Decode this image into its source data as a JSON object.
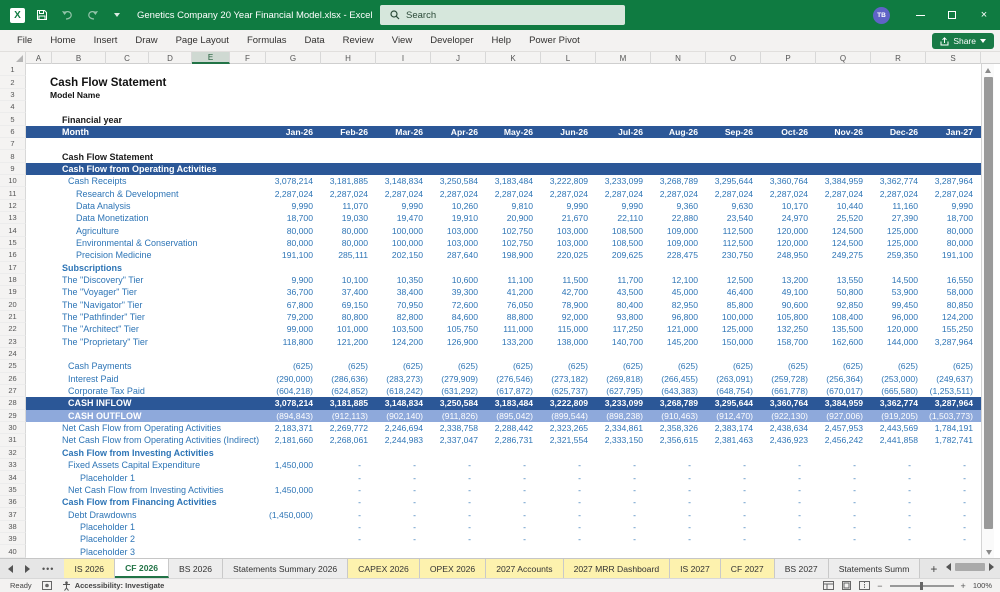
{
  "title_bar": {
    "title": "Genetics Company 20 Year Financial Model.xlsx  -  Excel",
    "search_placeholder": "Search",
    "avatar_initials": "TB"
  },
  "menu": {
    "items": [
      "File",
      "Home",
      "Insert",
      "Draw",
      "Page Layout",
      "Formulas",
      "Data",
      "Review",
      "View",
      "Developer",
      "Help",
      "Power Pivot"
    ],
    "share_label": "Share"
  },
  "colors": {
    "titlebar_green": "#0f7b41",
    "accent_green": "#217346",
    "navy_bar": "#2b5797",
    "light_blue_bar": "#8ea9db",
    "blue_text": "#2e75b6",
    "tab_yellow": "#fdf2ae"
  },
  "sheet": {
    "columns": [
      "A",
      "B",
      "C",
      "D",
      "E",
      "F",
      "G",
      "H",
      "I",
      "J",
      "K",
      "L",
      "M",
      "N",
      "O",
      "P",
      "Q",
      "R",
      "S"
    ],
    "selected_column": "E",
    "rows": [
      {
        "row": 1
      },
      {
        "row": 2,
        "label": "Cash Flow Statement",
        "style": "title",
        "indent": 0
      },
      {
        "row": 3,
        "label": "Model Name",
        "style": "subtitle",
        "indent": 0
      },
      {
        "row": 4
      },
      {
        "row": 5,
        "label": "Financial year",
        "style": "boldblack",
        "indent": 1
      },
      {
        "row": 6,
        "label": "Month",
        "style": "navybar",
        "indent": 1,
        "values": [
          "Jan-26",
          "Feb-26",
          "Mar-26",
          "Apr-26",
          "May-26",
          "Jun-26",
          "Jul-26",
          "Aug-26",
          "Sep-26",
          "Oct-26",
          "Nov-26",
          "Dec-26",
          "Jan-27"
        ]
      },
      {
        "row": 7
      },
      {
        "row": 8,
        "label": "Cash Flow Statement",
        "style": "boldblack",
        "indent": 1
      },
      {
        "row": 9,
        "label": "Cash Flow from Operating Activities",
        "style": "navybar",
        "indent": 1
      },
      {
        "row": 10,
        "label": "Cash Receipts",
        "style": "blue",
        "indent": 2,
        "values": [
          "3,078,214",
          "3,181,885",
          "3,148,834",
          "3,250,584",
          "3,183,484",
          "3,222,809",
          "3,233,099",
          "3,268,789",
          "3,295,644",
          "3,360,764",
          "3,384,959",
          "3,362,774",
          "3,287,964"
        ]
      },
      {
        "row": 11,
        "label": "Research & Development",
        "style": "blue",
        "indent": 3,
        "values": [
          "2,287,024",
          "2,287,024",
          "2,287,024",
          "2,287,024",
          "2,287,024",
          "2,287,024",
          "2,287,024",
          "2,287,024",
          "2,287,024",
          "2,287,024",
          "2,287,024",
          "2,287,024",
          "2,287,024"
        ]
      },
      {
        "row": 12,
        "label": "Data Analysis",
        "style": "blue",
        "indent": 3,
        "values": [
          "9,990",
          "11,070",
          "9,990",
          "10,260",
          "9,810",
          "9,990",
          "9,990",
          "9,360",
          "9,630",
          "10,170",
          "10,440",
          "11,160",
          "9,990"
        ]
      },
      {
        "row": 13,
        "label": "Data Monetization",
        "style": "blue",
        "indent": 3,
        "values": [
          "18,700",
          "19,030",
          "19,470",
          "19,910",
          "20,900",
          "21,670",
          "22,110",
          "22,880",
          "23,540",
          "24,970",
          "25,520",
          "27,390",
          "18,700"
        ]
      },
      {
        "row": 14,
        "label": "Agriculture",
        "style": "blue",
        "indent": 3,
        "values": [
          "80,000",
          "80,000",
          "100,000",
          "103,000",
          "102,750",
          "103,000",
          "108,500",
          "109,000",
          "112,500",
          "120,000",
          "124,500",
          "125,000",
          "80,000"
        ]
      },
      {
        "row": 15,
        "label": "Environmental & Conservation",
        "style": "blue",
        "indent": 3,
        "values": [
          "80,000",
          "80,000",
          "100,000",
          "103,000",
          "102,750",
          "103,000",
          "108,500",
          "109,000",
          "112,500",
          "120,000",
          "124,500",
          "125,000",
          "80,000"
        ]
      },
      {
        "row": 16,
        "label": "Precision Medicine",
        "style": "blue",
        "indent": 3,
        "values": [
          "191,100",
          "285,111",
          "202,150",
          "287,640",
          "198,900",
          "220,025",
          "209,625",
          "228,475",
          "230,750",
          "248,950",
          "249,275",
          "259,350",
          "191,100"
        ]
      },
      {
        "row": 17,
        "label": "Subscriptions",
        "style": "bluebold",
        "indent": 1
      },
      {
        "row": 18,
        "label": "The \"Discovery\" Tier",
        "style": "blue",
        "indent": 1,
        "values": [
          "9,900",
          "10,100",
          "10,350",
          "10,600",
          "11,100",
          "11,500",
          "11,700",
          "12,100",
          "12,500",
          "13,200",
          "13,550",
          "14,500",
          "16,550"
        ]
      },
      {
        "row": 19,
        "label": "The \"Voyager\" Tier",
        "style": "blue",
        "indent": 1,
        "values": [
          "36,700",
          "37,400",
          "38,400",
          "39,300",
          "41,200",
          "42,700",
          "43,500",
          "45,000",
          "46,400",
          "49,100",
          "50,800",
          "53,900",
          "58,000"
        ]
      },
      {
        "row": 20,
        "label": "The \"Navigator\" Tier",
        "style": "blue",
        "indent": 1,
        "values": [
          "67,800",
          "69,150",
          "70,950",
          "72,600",
          "76,050",
          "78,900",
          "80,400",
          "82,950",
          "85,800",
          "90,600",
          "92,850",
          "99,450",
          "80,850"
        ]
      },
      {
        "row": 21,
        "label": "The \"Pathfinder\" Tier",
        "style": "blue",
        "indent": 1,
        "values": [
          "79,200",
          "80,800",
          "82,800",
          "84,600",
          "88,800",
          "92,000",
          "93,800",
          "96,800",
          "100,000",
          "105,800",
          "108,400",
          "96,000",
          "124,200"
        ]
      },
      {
        "row": 22,
        "label": "The \"Architect\" Tier",
        "style": "blue",
        "indent": 1,
        "values": [
          "99,000",
          "101,000",
          "103,500",
          "105,750",
          "111,000",
          "115,000",
          "117,250",
          "121,000",
          "125,000",
          "132,250",
          "135,500",
          "120,000",
          "155,250"
        ]
      },
      {
        "row": 23,
        "label": "The \"Proprietary\" Tier",
        "style": "blue",
        "indent": 1,
        "values": [
          "118,800",
          "121,200",
          "124,200",
          "126,900",
          "133,200",
          "138,000",
          "140,700",
          "145,200",
          "150,000",
          "158,700",
          "162,600",
          "144,000",
          "3,287,964"
        ]
      },
      {
        "row": 24
      },
      {
        "row": 25,
        "label": "Cash Payments",
        "style": "blue",
        "indent": 2,
        "values": [
          "(625)",
          "(625)",
          "(625)",
          "(625)",
          "(625)",
          "(625)",
          "(625)",
          "(625)",
          "(625)",
          "(625)",
          "(625)",
          "(625)",
          "(625)"
        ]
      },
      {
        "row": 26,
        "label": "Interest Paid",
        "style": "blue",
        "indent": 2,
        "values": [
          "(290,000)",
          "(286,636)",
          "(283,273)",
          "(279,909)",
          "(276,546)",
          "(273,182)",
          "(269,818)",
          "(266,455)",
          "(263,091)",
          "(259,728)",
          "(256,364)",
          "(253,000)",
          "(249,637)"
        ]
      },
      {
        "row": 27,
        "label": "Corporate Tax Paid",
        "style": "blue",
        "indent": 2,
        "values": [
          "(604,218)",
          "(624,852)",
          "(618,242)",
          "(631,292)",
          "(617,872)",
          "(625,737)",
          "(627,795)",
          "(643,383)",
          "(648,754)",
          "(661,778)",
          "(670,017)",
          "(665,580)",
          "(1,253,511)"
        ]
      },
      {
        "row": 28,
        "label": "CASH INFLOW",
        "style": "navybar",
        "indent": 2,
        "values": [
          "3,078,214",
          "3,181,885",
          "3,148,834",
          "3,250,584",
          "3,183,484",
          "3,222,809",
          "3,233,099",
          "3,268,789",
          "3,295,644",
          "3,360,764",
          "3,384,959",
          "3,362,774",
          "3,287,964"
        ]
      },
      {
        "row": 29,
        "label": "CASH OUTFLOW",
        "style": "lightbar",
        "indent": 2,
        "values": [
          "(894,843)",
          "(912,113)",
          "(902,140)",
          "(911,826)",
          "(895,042)",
          "(899,544)",
          "(898,238)",
          "(910,463)",
          "(912,470)",
          "(922,130)",
          "(927,006)",
          "(919,205)",
          "(1,503,773)"
        ]
      },
      {
        "row": 30,
        "label": "Net Cash Flow from Operating Activities",
        "style": "blue",
        "indent": 1,
        "values": [
          "2,183,371",
          "2,269,772",
          "2,246,694",
          "2,338,758",
          "2,288,442",
          "2,323,265",
          "2,334,861",
          "2,358,326",
          "2,383,174",
          "2,438,634",
          "2,457,953",
          "2,443,569",
          "1,784,191"
        ]
      },
      {
        "row": 31,
        "label": "Net Cash Flow from Operating Activities (Indirect)",
        "style": "blue",
        "indent": 1,
        "values": [
          "2,181,660",
          "2,268,061",
          "2,244,983",
          "2,337,047",
          "2,286,731",
          "2,321,554",
          "2,333,150",
          "2,356,615",
          "2,381,463",
          "2,436,923",
          "2,456,242",
          "2,441,858",
          "1,782,741"
        ]
      },
      {
        "row": 32,
        "label": "Cash Flow from Investing Activities",
        "style": "bluebold",
        "indent": 1
      },
      {
        "row": 33,
        "label": "Fixed Assets Capital Expenditure",
        "style": "blue",
        "indent": 2,
        "values": [
          "1,450,000",
          "-",
          "-",
          "-",
          "-",
          "-",
          "-",
          "-",
          "-",
          "-",
          "-",
          "-",
          "-"
        ]
      },
      {
        "row": 34,
        "label": "Placeholder 1",
        "style": "blue",
        "indent": 4,
        "values": [
          "",
          "-",
          "-",
          "-",
          "-",
          "-",
          "-",
          "-",
          "-",
          "-",
          "-",
          "-",
          "-"
        ]
      },
      {
        "row": 35,
        "label": "Net Cash Flow from Investing Activities",
        "style": "blue",
        "indent": 2,
        "values": [
          "1,450,000",
          "-",
          "-",
          "-",
          "-",
          "-",
          "-",
          "-",
          "-",
          "-",
          "-",
          "-",
          "-"
        ]
      },
      {
        "row": 36,
        "label": "Cash Flow from Financing Activities",
        "style": "bluebold",
        "indent": 1,
        "values": [
          "",
          "-",
          "-",
          "-",
          "-",
          "-",
          "-",
          "-",
          "-",
          "-",
          "-",
          "-",
          "-"
        ]
      },
      {
        "row": 37,
        "label": "Debt Drawdowns",
        "style": "blue",
        "indent": 2,
        "values": [
          "(1,450,000)",
          "-",
          "-",
          "-",
          "-",
          "-",
          "-",
          "-",
          "-",
          "-",
          "-",
          "-",
          "-"
        ]
      },
      {
        "row": 38,
        "label": "Placeholder 1",
        "style": "blue",
        "indent": 4,
        "values": [
          "",
          "-",
          "-",
          "-",
          "-",
          "-",
          "-",
          "-",
          "-",
          "-",
          "-",
          "-",
          "-"
        ]
      },
      {
        "row": 39,
        "label": "Placeholder 2",
        "style": "blue",
        "indent": 4,
        "values": [
          "",
          "-",
          "-",
          "-",
          "-",
          "-",
          "-",
          "-",
          "-",
          "-",
          "-",
          "-",
          "-"
        ]
      },
      {
        "row": 40,
        "label": "Placeholder 3",
        "style": "blue",
        "indent": 4
      }
    ]
  },
  "sheet_tabs": {
    "tabs": [
      {
        "label": "IS 2026",
        "color": "yellow"
      },
      {
        "label": "CF 2026",
        "active": true
      },
      {
        "label": "BS 2026"
      },
      {
        "label": "Statements Summary 2026"
      },
      {
        "label": "CAPEX 2026",
        "color": "yellow"
      },
      {
        "label": "OPEX 2026",
        "color": "yellow"
      },
      {
        "label": "2027 Accounts",
        "color": "yellow"
      },
      {
        "label": "2027 MRR Dashboard",
        "color": "yellow"
      },
      {
        "label": "IS 2027",
        "color": "yellow"
      },
      {
        "label": "CF 2027",
        "color": "yellow"
      },
      {
        "label": "BS 2027"
      },
      {
        "label": "Statements Summ"
      }
    ]
  },
  "status_bar": {
    "ready": "Ready",
    "accessibility": "Accessibility: Investigate",
    "zoom": "100%"
  }
}
